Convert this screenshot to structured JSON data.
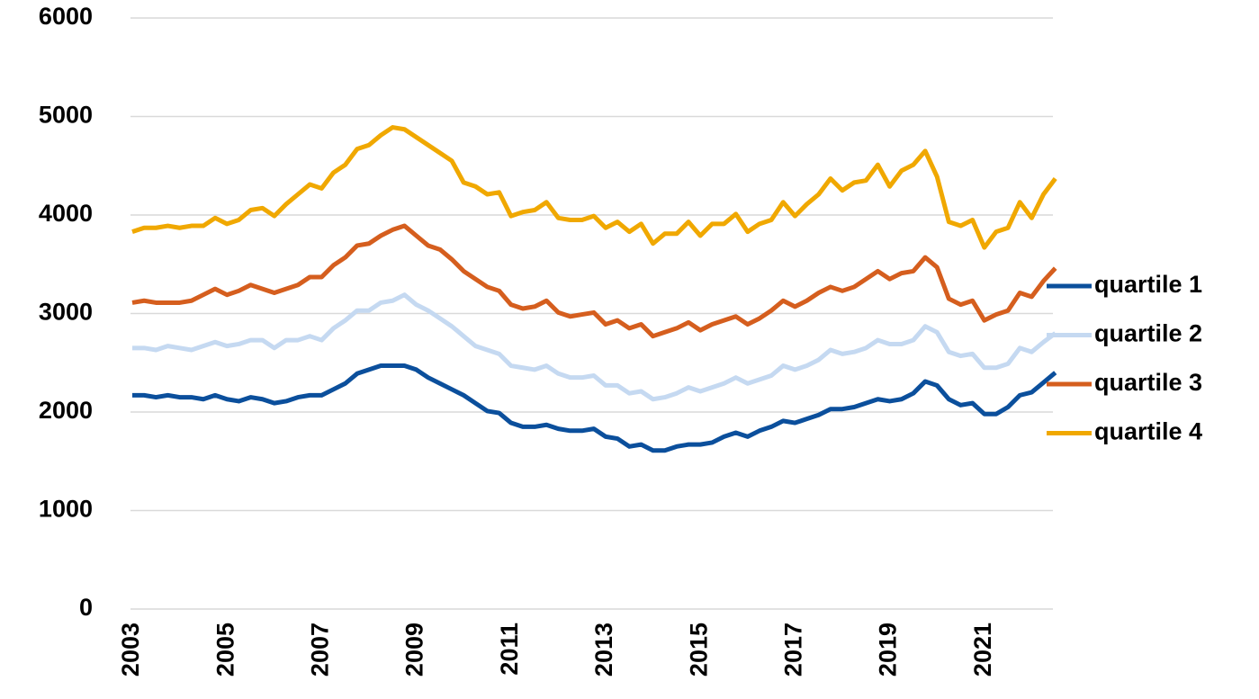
{
  "chart_data": {
    "type": "line",
    "categories": [
      "2003",
      null,
      null,
      null,
      null,
      null,
      null,
      null,
      "2005",
      null,
      null,
      null,
      null,
      null,
      null,
      null,
      "2007",
      null,
      null,
      null,
      null,
      null,
      null,
      null,
      "2009",
      null,
      null,
      null,
      null,
      null,
      null,
      null,
      "2011",
      null,
      null,
      null,
      null,
      null,
      null,
      null,
      "2013",
      null,
      null,
      null,
      null,
      null,
      null,
      null,
      "2015",
      null,
      null,
      null,
      null,
      null,
      null,
      null,
      "2017",
      null,
      null,
      null,
      null,
      null,
      null,
      null,
      "2019",
      null,
      null,
      null,
      null,
      null,
      null,
      null,
      "2021",
      null,
      null,
      null,
      null,
      null,
      null
    ],
    "series": [
      {
        "name": "quartile 1",
        "color": "#0b4f9c",
        "values": [
          2170,
          2170,
          2150,
          2170,
          2150,
          2150,
          2130,
          2170,
          2130,
          2110,
          2150,
          2130,
          2090,
          2110,
          2150,
          2170,
          2170,
          2230,
          2290,
          2390,
          2430,
          2470,
          2470,
          2470,
          2430,
          2350,
          2290,
          2230,
          2170,
          2090,
          2010,
          1990,
          1890,
          1850,
          1850,
          1870,
          1830,
          1810,
          1810,
          1830,
          1750,
          1730,
          1650,
          1670,
          1610,
          1610,
          1650,
          1670,
          1670,
          1690,
          1750,
          1790,
          1750,
          1810,
          1850,
          1910,
          1890,
          1930,
          1970,
          2030,
          2030,
          2050,
          2090,
          2130,
          2110,
          2130,
          2190,
          2310,
          2270,
          2130,
          2070,
          2090,
          1980,
          1980,
          2050,
          2170,
          2200,
          2300,
          2400
        ]
      },
      {
        "name": "quartile 2",
        "color": "#c5d9f1",
        "values": [
          2650,
          2650,
          2630,
          2670,
          2650,
          2630,
          2670,
          2710,
          2670,
          2690,
          2730,
          2730,
          2650,
          2730,
          2730,
          2770,
          2730,
          2850,
          2930,
          3030,
          3030,
          3110,
          3130,
          3190,
          3090,
          3030,
          2950,
          2870,
          2770,
          2670,
          2630,
          2590,
          2470,
          2450,
          2430,
          2470,
          2390,
          2350,
          2350,
          2370,
          2270,
          2270,
          2190,
          2210,
          2130,
          2150,
          2190,
          2250,
          2210,
          2250,
          2290,
          2350,
          2290,
          2330,
          2370,
          2470,
          2430,
          2470,
          2530,
          2630,
          2590,
          2610,
          2650,
          2730,
          2690,
          2690,
          2730,
          2870,
          2810,
          2610,
          2570,
          2590,
          2450,
          2450,
          2490,
          2650,
          2610,
          2710,
          2800
        ]
      },
      {
        "name": "quartile 3",
        "color": "#d55e1e",
        "values": [
          3110,
          3130,
          3110,
          3110,
          3110,
          3130,
          3190,
          3250,
          3190,
          3230,
          3290,
          3250,
          3210,
          3250,
          3290,
          3370,
          3370,
          3490,
          3570,
          3690,
          3710,
          3790,
          3850,
          3890,
          3790,
          3690,
          3650,
          3550,
          3430,
          3350,
          3270,
          3230,
          3090,
          3050,
          3070,
          3130,
          3010,
          2970,
          2990,
          3010,
          2890,
          2930,
          2850,
          2890,
          2770,
          2810,
          2850,
          2910,
          2830,
          2890,
          2930,
          2970,
          2890,
          2950,
          3030,
          3130,
          3070,
          3130,
          3210,
          3270,
          3230,
          3270,
          3350,
          3430,
          3350,
          3410,
          3430,
          3570,
          3470,
          3150,
          3090,
          3130,
          2930,
          2990,
          3030,
          3210,
          3170,
          3330,
          3460
        ]
      },
      {
        "name": "quartile 4",
        "color": "#f0a800",
        "values": [
          3830,
          3870,
          3870,
          3890,
          3870,
          3890,
          3890,
          3970,
          3910,
          3950,
          4050,
          4070,
          3990,
          4110,
          4210,
          4310,
          4270,
          4430,
          4510,
          4670,
          4710,
          4810,
          4890,
          4870,
          4790,
          4710,
          4630,
          4550,
          4330,
          4290,
          4210,
          4230,
          3990,
          4030,
          4050,
          4130,
          3970,
          3950,
          3950,
          3990,
          3870,
          3930,
          3830,
          3910,
          3710,
          3810,
          3810,
          3930,
          3790,
          3910,
          3910,
          4010,
          3830,
          3910,
          3950,
          4130,
          3990,
          4110,
          4210,
          4370,
          4250,
          4330,
          4350,
          4510,
          4290,
          4450,
          4510,
          4650,
          4390,
          3930,
          3890,
          3950,
          3670,
          3830,
          3870,
          4130,
          3970,
          4210,
          4370
        ]
      }
    ],
    "ylim": [
      0,
      6000
    ],
    "yticks": [
      0,
      1000,
      2000,
      3000,
      4000,
      5000,
      6000
    ],
    "grid": true,
    "legend": "right"
  }
}
